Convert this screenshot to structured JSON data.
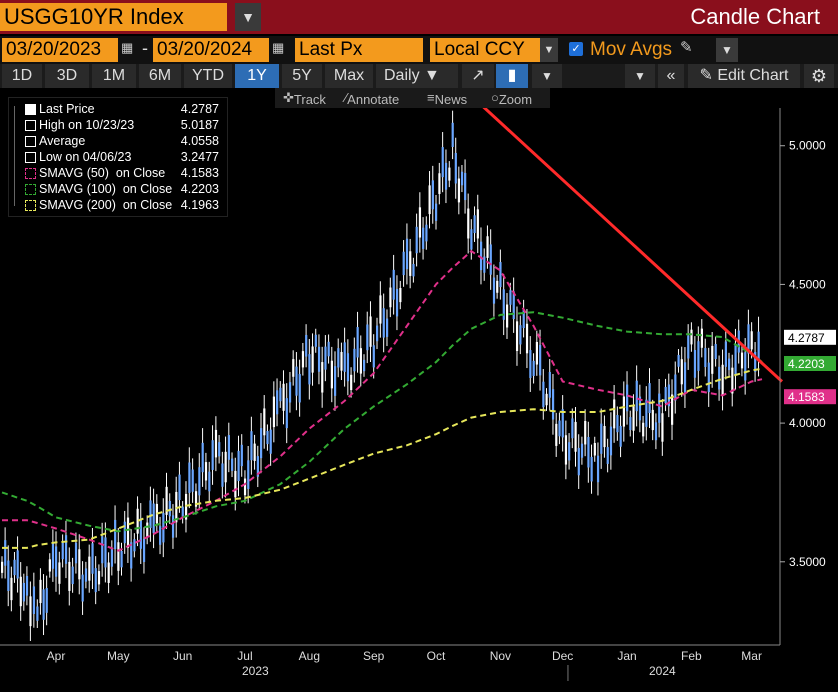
{
  "header": {
    "ticker": "USGG10YR Index",
    "chart_type": "Candle Chart"
  },
  "controls": {
    "start_date": "03/20/2023",
    "separator": "-",
    "end_date": "03/20/2024",
    "field": "Last Px",
    "currency": "Local CCY",
    "mov_avgs_label": "Mov Avgs"
  },
  "periods": [
    "1D",
    "3D",
    "1M",
    "6M",
    "YTD",
    "1Y",
    "5Y",
    "Max"
  ],
  "selected_period": "1Y",
  "frequency": "Daily",
  "edit_chart_label": "Edit Chart",
  "subtools": {
    "track": "Track",
    "annotate": "Annotate",
    "news": "News",
    "zoom": "Zoom"
  },
  "legend": {
    "rows": [
      {
        "label": "Last Price",
        "value": "4.2787",
        "color": "#ffffff"
      },
      {
        "label": "High on 10/23/23",
        "value": "5.0187",
        "color": "#ffffff"
      },
      {
        "label": "Average",
        "value": "4.0558",
        "color": "#ffffff"
      },
      {
        "label": "Low on 04/06/23",
        "value": "3.2477",
        "color": "#ffffff"
      },
      {
        "label": "SMAVG (50)  on Close",
        "value": "4.1583",
        "color": "#e0308a"
      },
      {
        "label": "SMAVG (100)  on Close",
        "value": "4.2203",
        "color": "#33aa33"
      },
      {
        "label": "SMAVG (200)  on Close",
        "value": "4.1963",
        "color": "#e6e65a"
      }
    ]
  },
  "chart_data": {
    "type": "line",
    "title": "USGG10YR Index",
    "ylim": [
      3.2,
      5.1
    ],
    "y_ticks": [
      "3.5000",
      "4.0000",
      "4.5000",
      "5.0000"
    ],
    "x_month_labels": [
      "Apr",
      "May",
      "Jun",
      "Jul",
      "Aug",
      "Sep",
      "Oct",
      "Nov",
      "Dec",
      "Jan",
      "Feb",
      "Mar"
    ],
    "x_year_labels": [
      "2023",
      "2024"
    ],
    "x": [
      "2023-03-20",
      "2023-04-01",
      "2023-04-06",
      "2023-04-15",
      "2023-05-01",
      "2023-05-15",
      "2023-06-01",
      "2023-06-15",
      "2023-07-01",
      "2023-07-15",
      "2023-08-01",
      "2023-08-15",
      "2023-09-01",
      "2023-09-15",
      "2023-10-01",
      "2023-10-15",
      "2023-10-23",
      "2023-11-01",
      "2023-11-15",
      "2023-12-01",
      "2023-12-15",
      "2024-01-01",
      "2024-01-15",
      "2024-02-01",
      "2024-02-15",
      "2024-03-01",
      "2024-03-15",
      "2024-03-20"
    ],
    "series": [
      {
        "name": "Last Price",
        "color": "#6aa6ff",
        "values": [
          3.48,
          3.42,
          3.3,
          3.52,
          3.45,
          3.55,
          3.62,
          3.72,
          3.88,
          3.82,
          4.05,
          4.25,
          4.18,
          4.3,
          4.55,
          4.82,
          4.98,
          4.72,
          4.48,
          4.25,
          3.95,
          3.88,
          4.05,
          4.02,
          4.28,
          4.18,
          4.28,
          4.2787
        ]
      },
      {
        "name": "SMAVG (50)  on Close",
        "color": "#e0308a",
        "values": [
          3.65,
          3.65,
          3.64,
          3.62,
          3.58,
          3.54,
          3.6,
          3.66,
          3.72,
          3.78,
          3.88,
          3.98,
          4.08,
          4.18,
          4.35,
          4.5,
          4.56,
          4.62,
          4.55,
          4.35,
          4.15,
          4.12,
          4.1,
          4.06,
          4.12,
          4.1,
          4.15,
          4.1583
        ]
      },
      {
        "name": "SMAVG (100)  on Close",
        "color": "#33aa33",
        "values": [
          3.75,
          3.72,
          3.7,
          3.66,
          3.63,
          3.61,
          3.63,
          3.66,
          3.7,
          3.72,
          3.78,
          3.86,
          3.98,
          4.06,
          4.14,
          4.22,
          4.28,
          4.34,
          4.39,
          4.4,
          4.38,
          4.35,
          4.33,
          4.32,
          4.32,
          4.31,
          4.25,
          4.2203
        ]
      },
      {
        "name": "SMAVG (200)  on Close",
        "color": "#e6e65a",
        "values": [
          3.55,
          3.55,
          3.56,
          3.57,
          3.58,
          3.62,
          3.67,
          3.7,
          3.72,
          3.73,
          3.76,
          3.8,
          3.85,
          3.89,
          3.92,
          3.96,
          3.99,
          4.02,
          4.04,
          4.05,
          4.04,
          4.04,
          4.06,
          4.08,
          4.12,
          4.16,
          4.19,
          4.1963
        ]
      }
    ],
    "trendline": {
      "color": "#ff2a2a",
      "from": [
        "2023-10-05",
        5.18
      ],
      "to": [
        "2024-03-20",
        4.15
      ]
    },
    "last_labels": [
      {
        "value": "4.2787",
        "color": "#ffffff",
        "text_color": "#000000"
      },
      {
        "value": "4.2203",
        "color": "#33aa33",
        "text_color": "#ffffff"
      },
      {
        "value": "4.1583",
        "color": "#e0308a",
        "text_color": "#ffffff"
      }
    ],
    "grid": false,
    "legend_position": "top-left"
  }
}
